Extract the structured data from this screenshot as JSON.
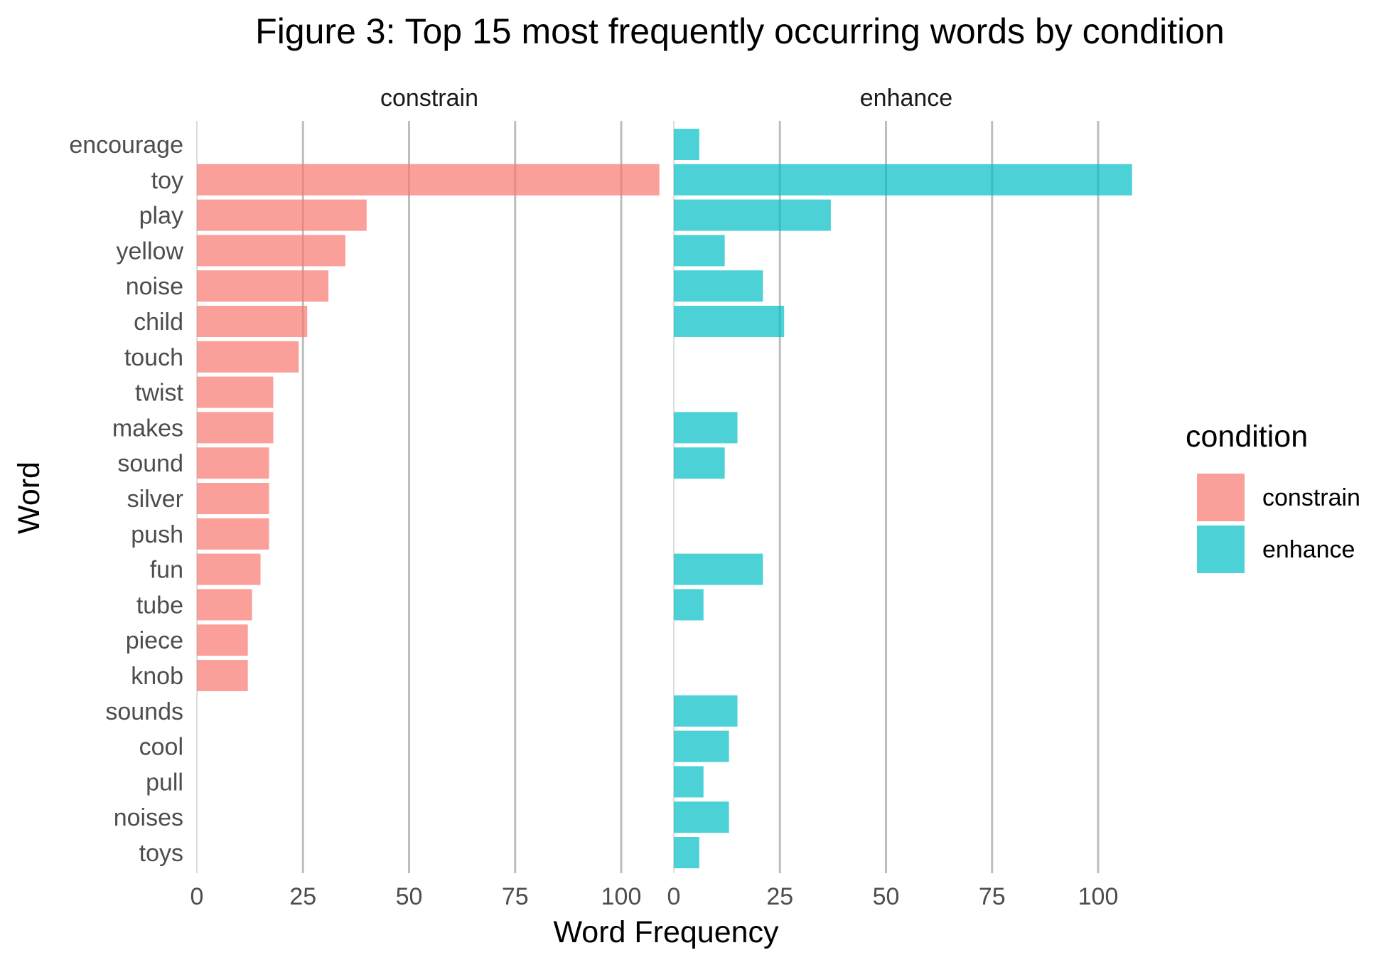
{
  "chart_data": {
    "type": "bar",
    "orientation": "horizontal",
    "title": "Figure 3: Top 15 most frequently occurring words by condition",
    "xlabel": "Word Frequency",
    "ylabel": "Word",
    "xlim": [
      0,
      110
    ],
    "x_ticks": [
      "0",
      "25",
      "50",
      "75",
      "100"
    ],
    "x_tick_values": [
      0,
      25,
      50,
      75,
      100
    ],
    "grid": true,
    "legend": {
      "title": "condition",
      "position": "right"
    },
    "categories": [
      "encourage",
      "toy",
      "play",
      "yellow",
      "noise",
      "child",
      "touch",
      "twist",
      "makes",
      "sound",
      "silver",
      "push",
      "fun",
      "tube",
      "piece",
      "knob",
      "sounds",
      "cool",
      "pull",
      "noises",
      "toys"
    ],
    "facets": [
      {
        "name": "constrain",
        "color": "#F8766D",
        "values": {
          "toy": 109,
          "play": 40,
          "yellow": 35,
          "noise": 31,
          "child": 26,
          "touch": 24,
          "twist": 18,
          "makes": 18,
          "sound": 17,
          "silver": 17,
          "push": 17,
          "fun": 15,
          "tube": 13,
          "piece": 12,
          "knob": 12
        }
      },
      {
        "name": "enhance",
        "color": "#00BFC4",
        "values": {
          "encourage": 6,
          "toy": 108,
          "play": 37,
          "yellow": 12,
          "noise": 21,
          "child": 26,
          "makes": 15,
          "sound": 12,
          "fun": 21,
          "tube": 7,
          "sounds": 15,
          "cool": 13,
          "pull": 7,
          "noises": 13,
          "toys": 6
        }
      }
    ]
  }
}
